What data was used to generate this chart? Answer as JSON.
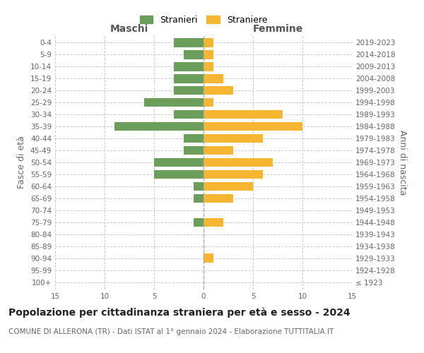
{
  "age_groups": [
    "100+",
    "95-99",
    "90-94",
    "85-89",
    "80-84",
    "75-79",
    "70-74",
    "65-69",
    "60-64",
    "55-59",
    "50-54",
    "45-49",
    "40-44",
    "35-39",
    "30-34",
    "25-29",
    "20-24",
    "15-19",
    "10-14",
    "5-9",
    "0-4"
  ],
  "birth_years": [
    "≤ 1923",
    "1924-1928",
    "1929-1933",
    "1934-1938",
    "1939-1943",
    "1944-1948",
    "1949-1953",
    "1954-1958",
    "1959-1963",
    "1964-1968",
    "1969-1973",
    "1974-1978",
    "1979-1983",
    "1984-1988",
    "1989-1993",
    "1994-1998",
    "1999-2003",
    "2004-2008",
    "2009-2013",
    "2014-2018",
    "2019-2023"
  ],
  "males": [
    0,
    0,
    0,
    0,
    0,
    1,
    0,
    1,
    1,
    5,
    5,
    2,
    2,
    9,
    3,
    6,
    3,
    3,
    3,
    2,
    3
  ],
  "females": [
    0,
    0,
    1,
    0,
    0,
    2,
    0,
    3,
    5,
    6,
    7,
    3,
    6,
    10,
    8,
    1,
    3,
    2,
    1,
    1,
    1
  ],
  "male_color": "#6a9e5a",
  "female_color": "#f5b731",
  "center_line_color": "#888855",
  "grid_color": "#cccccc",
  "background_color": "#ffffff",
  "title": "Popolazione per cittadinanza straniera per età e sesso - 2024",
  "subtitle": "COMUNE DI ALLERONA (TR) - Dati ISTAT al 1° gennaio 2024 - Elaborazione TUTTITALIA.IT",
  "xlabel_left": "Maschi",
  "xlabel_right": "Femmine",
  "ylabel_left": "Fasce di età",
  "ylabel_right": "Anni di nascita",
  "legend_male": "Stranieri",
  "legend_female": "Straniere",
  "xlim": 15,
  "title_fontsize": 10,
  "subtitle_fontsize": 7.5,
  "label_fontsize": 9,
  "tick_fontsize": 7.5
}
